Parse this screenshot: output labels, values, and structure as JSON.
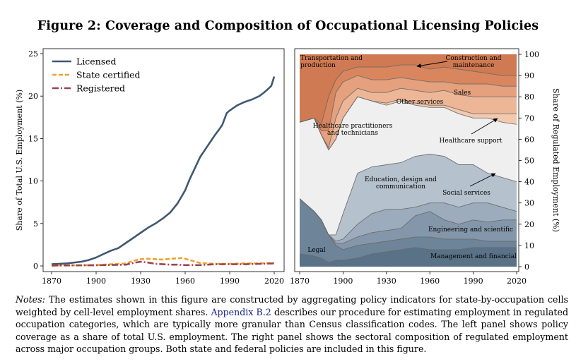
{
  "figure": {
    "title": "Figure 2:  Coverage and Composition of Occupational Licensing Policies"
  },
  "notes": {
    "label": "Notes:",
    "before_link": " The estimates shown in this figure are constructed by aggregating policy indicators for state-by-occupation cells weighted by cell-level employment shares. ",
    "link": "Appendix B.2",
    "after_link": " describes our procedure for estimating employment in regulated occupation categories, which are typically more granular than Census classification codes.  The left panel shows policy coverage as a share of total U.S. employment. The right panel shows the sectoral composition of regulated employment across major occupation groups. Both state and federal policies are included in this figure."
  },
  "chart_data": [
    {
      "type": "line",
      "panel": "left",
      "ylabel": "Share of Total U.S. Employment (%)",
      "xlim": [
        1870,
        2020
      ],
      "ylim": [
        0,
        25
      ],
      "xticks": [
        1870,
        1900,
        1930,
        1960,
        1990,
        2020
      ],
      "yticks": [
        0,
        5,
        10,
        15,
        20,
        25
      ],
      "legend_position": "top-left",
      "series": [
        {
          "name": "Licensed",
          "color": "#3f5872",
          "style": "solid",
          "x": [
            1870,
            1880,
            1890,
            1895,
            1900,
            1905,
            1910,
            1915,
            1920,
            1925,
            1930,
            1935,
            1940,
            1945,
            1950,
            1955,
            1960,
            1963,
            1966,
            1970,
            1975,
            1980,
            1983,
            1985,
            1988,
            1990,
            1995,
            2000,
            2005,
            2010,
            2013,
            2015,
            2018,
            2020
          ],
          "y": [
            0.2,
            0.3,
            0.5,
            0.7,
            1.0,
            1.4,
            1.8,
            2.1,
            2.7,
            3.3,
            3.9,
            4.5,
            5.0,
            5.6,
            6.3,
            7.4,
            8.9,
            10.2,
            11.3,
            12.8,
            14.1,
            15.4,
            16.1,
            16.6,
            18.0,
            18.3,
            18.9,
            19.3,
            19.6,
            20.0,
            20.4,
            20.7,
            21.2,
            22.3
          ]
        },
        {
          "name": "State certified",
          "color": "#f0a030",
          "style": "dashed",
          "x": [
            1870,
            1900,
            1920,
            1925,
            1930,
            1935,
            1940,
            1945,
            1950,
            1955,
            1958,
            1960,
            1965,
            1970,
            1975,
            1980,
            1990,
            2000,
            2010,
            2020
          ],
          "y": [
            0.05,
            0.1,
            0.3,
            0.6,
            0.8,
            0.85,
            0.8,
            0.75,
            0.85,
            0.9,
            0.95,
            0.85,
            0.6,
            0.35,
            0.3,
            0.25,
            0.25,
            0.3,
            0.3,
            0.35
          ]
        },
        {
          "name": "Registered",
          "color": "#9a4552",
          "style": "dashdot",
          "x": [
            1870,
            1900,
            1920,
            1925,
            1930,
            1935,
            1940,
            1945,
            1950,
            1955,
            1960,
            1965,
            1970,
            1975,
            1980,
            1990,
            2000,
            2010,
            2020
          ],
          "y": [
            0.05,
            0.08,
            0.15,
            0.35,
            0.5,
            0.4,
            0.25,
            0.2,
            0.15,
            0.15,
            0.1,
            0.1,
            0.1,
            0.15,
            0.2,
            0.2,
            0.2,
            0.25,
            0.3
          ]
        }
      ]
    },
    {
      "type": "area",
      "panel": "right",
      "stacked": true,
      "ylabel": "Share of Regulated Employment (%)",
      "xlim": [
        1870,
        2020
      ],
      "ylim": [
        0,
        100
      ],
      "xticks": [
        1870,
        1900,
        1930,
        1960,
        1990,
        2020
      ],
      "yticks": [
        0,
        10,
        20,
        30,
        40,
        50,
        60,
        70,
        80,
        90,
        100
      ],
      "x": [
        1870,
        1880,
        1885,
        1890,
        1895,
        1900,
        1910,
        1920,
        1930,
        1940,
        1950,
        1960,
        1970,
        1980,
        1990,
        2000,
        2010,
        2020
      ],
      "series": [
        {
          "name": "Management and financial",
          "color": "#5a7288",
          "upper": [
            6,
            5,
            4,
            2,
            3,
            3,
            4,
            6,
            7,
            8,
            9,
            8,
            8,
            8,
            9,
            9,
            9,
            9
          ]
        },
        {
          "name": "Legal",
          "color": "#6d8499",
          "upper": [
            32,
            26,
            22,
            15,
            10,
            8,
            10,
            11,
            12,
            13,
            14,
            14,
            13,
            13,
            13,
            12,
            12,
            12
          ]
        },
        {
          "name": "Engineering and scientific",
          "color": "#8497aa",
          "upper": [
            32,
            26,
            22,
            15,
            11,
            11,
            14,
            16,
            17,
            18,
            24,
            26,
            22,
            20,
            22,
            21,
            22,
            22
          ]
        },
        {
          "name": "Social services",
          "color": "#9dacbc",
          "upper": [
            32,
            26,
            22,
            15,
            12,
            13,
            20,
            25,
            27,
            27,
            28,
            30,
            30,
            28,
            30,
            30,
            28,
            26
          ]
        },
        {
          "name": "Education, design and communication",
          "color": "#b5c1cc",
          "upper": [
            32,
            26,
            22,
            15,
            15,
            25,
            44,
            47,
            48,
            49,
            52,
            53,
            52,
            48,
            48,
            44,
            42,
            40
          ]
        },
        {
          "name": "Healthcare practitioners and technicians",
          "color": "#efefef",
          "upper": [
            68,
            70,
            62,
            55,
            60,
            70,
            80,
            78,
            76,
            78,
            76,
            75,
            75,
            72,
            70,
            70,
            68,
            67
          ]
        },
        {
          "name": "Healthcare support",
          "color": "#f3c9ae",
          "upper": [
            68,
            70,
            62,
            55,
            60,
            70,
            80,
            78,
            77,
            79,
            77,
            76,
            76,
            74,
            72,
            72,
            72,
            72
          ]
        },
        {
          "name": "Other services",
          "color": "#edb797",
          "upper": [
            68,
            70,
            62,
            56,
            70,
            78,
            84,
            82,
            82,
            84,
            83,
            82,
            83,
            81,
            80,
            80,
            80,
            80
          ]
        },
        {
          "name": "Sales",
          "color": "#e5a07d",
          "upper": [
            68,
            70,
            64,
            64,
            82,
            87,
            90,
            88,
            88,
            89,
            88,
            87,
            87,
            86,
            86,
            86,
            85,
            85
          ]
        },
        {
          "name": "Construction and maintenance",
          "color": "#d9865e",
          "upper": [
            68,
            70,
            67,
            80,
            88,
            92,
            94,
            94,
            94,
            95,
            95,
            93,
            94,
            93,
            92,
            91,
            90,
            90
          ]
        },
        {
          "name": "Transportation and production",
          "color": "#cf7a52",
          "upper": [
            100,
            100,
            100,
            100,
            100,
            100,
            100,
            100,
            100,
            100,
            100,
            100,
            100,
            100,
            100,
            100,
            100,
            100
          ]
        }
      ],
      "annotations": [
        {
          "text": "Transportation and production",
          "lines": [
            "Transportation and",
            "production"
          ]
        },
        {
          "text": "Construction and maintenance",
          "lines": [
            "Construction and",
            "maintenance"
          ],
          "arrow": true
        },
        {
          "text": "Sales",
          "lines": [
            "Sales"
          ]
        },
        {
          "text": "Other services",
          "lines": [
            "Other services"
          ]
        },
        {
          "text": "Healthcare practitioners and technicians",
          "lines": [
            "Healthcare practitioners",
            "and technicians"
          ]
        },
        {
          "text": "Healthcare support",
          "lines": [
            "Healthcare support"
          ],
          "arrow": true
        },
        {
          "text": "Education, design and communication",
          "lines": [
            "Education, design and",
            "communication"
          ]
        },
        {
          "text": "Social services",
          "lines": [
            "Social services"
          ],
          "arrow": true
        },
        {
          "text": "Engineering and scientific",
          "lines": [
            "Engineering and scientific"
          ]
        },
        {
          "text": "Legal",
          "lines": [
            "Legal"
          ]
        },
        {
          "text": "Management and financial",
          "lines": [
            "Management and financial"
          ]
        }
      ]
    }
  ]
}
